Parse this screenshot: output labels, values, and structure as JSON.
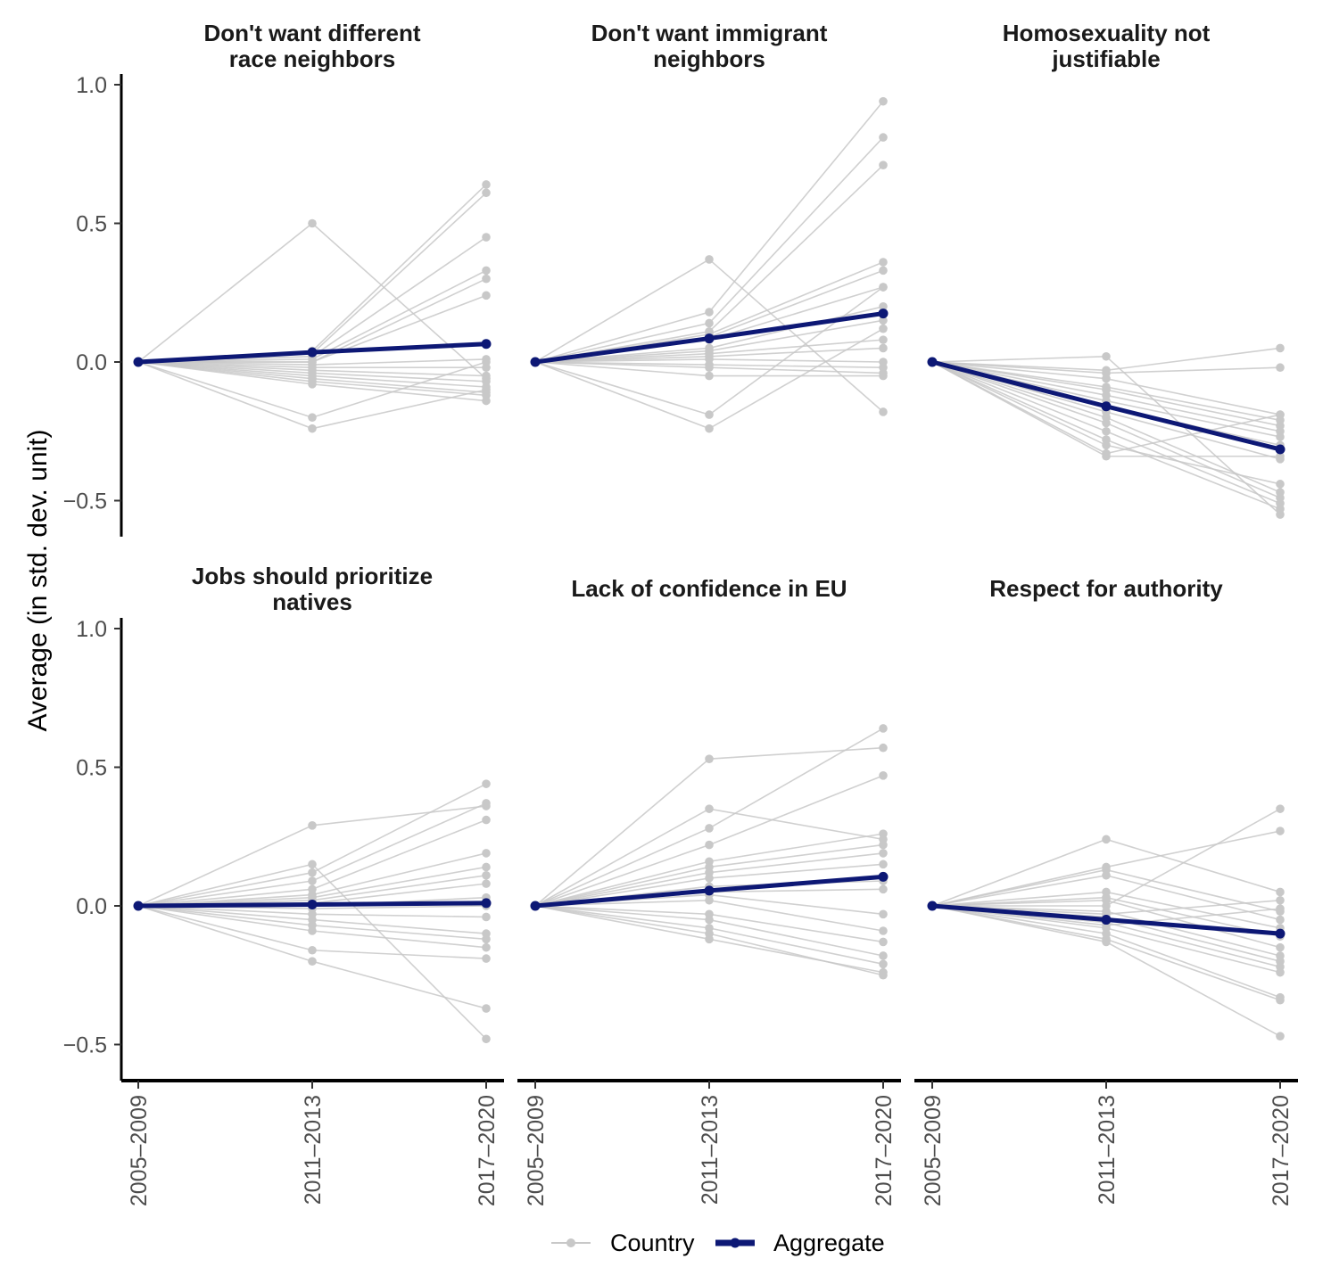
{
  "chart_data": {
    "type": "line",
    "ylabel": "Average (in std. dev. unit)",
    "periods": [
      "2005–2009",
      "2011–2013",
      "2017–2020"
    ],
    "yticks": [
      "1.0",
      "0.5",
      "0.0",
      "−0.5"
    ],
    "ylim": [
      -0.63,
      1.0
    ],
    "colors": {
      "country": "#c8c8c8",
      "aggregate": "#0d1875"
    },
    "legend": {
      "position": "bottom",
      "country_label": "Country",
      "aggregate_label": "Aggregate"
    },
    "panels": [
      {
        "title_lines": [
          "Don't want different",
          "race neighbors"
        ],
        "aggregate": [
          0,
          0.035,
          0.065
        ],
        "countries": [
          [
            0,
            0.5,
            -0.06
          ],
          [
            0,
            0.04,
            0.64
          ],
          [
            0,
            0.03,
            0.61
          ],
          [
            0,
            0.02,
            0.45
          ],
          [
            0,
            0.01,
            0.33
          ],
          [
            0,
            0.0,
            0.3
          ],
          [
            0,
            0.0,
            0.24
          ],
          [
            0,
            -0.01,
            0.01
          ],
          [
            0,
            -0.02,
            -0.02
          ],
          [
            0,
            -0.03,
            -0.05
          ],
          [
            0,
            -0.04,
            -0.07
          ],
          [
            0,
            -0.05,
            -0.09
          ],
          [
            0,
            -0.06,
            -0.11
          ],
          [
            0,
            -0.07,
            -0.12
          ],
          [
            0,
            -0.08,
            -0.14
          ],
          [
            0,
            -0.2,
            0.0
          ],
          [
            0,
            -0.24,
            -0.1
          ]
        ]
      },
      {
        "title_lines": [
          "Don't want immigrant",
          "neighbors"
        ],
        "aggregate": [
          0,
          0.085,
          0.175
        ],
        "countries": [
          [
            0,
            0.37,
            -0.18
          ],
          [
            0,
            0.18,
            0.94
          ],
          [
            0,
            0.14,
            0.81
          ],
          [
            0,
            0.11,
            0.71
          ],
          [
            0,
            0.1,
            0.36
          ],
          [
            0,
            0.09,
            0.33
          ],
          [
            0,
            0.08,
            0.27
          ],
          [
            0,
            0.05,
            0.2
          ],
          [
            0,
            0.04,
            0.15
          ],
          [
            0,
            0.03,
            0.08
          ],
          [
            0,
            0.02,
            0.05
          ],
          [
            0,
            0.01,
            0.0
          ],
          [
            0,
            -0.01,
            -0.02
          ],
          [
            0,
            -0.02,
            -0.04
          ],
          [
            0,
            -0.05,
            -0.05
          ],
          [
            0,
            -0.19,
            0.27
          ],
          [
            0,
            -0.24,
            0.12
          ]
        ]
      },
      {
        "title_lines": [
          "Homosexuality not",
          "justifiable"
        ],
        "aggregate": [
          0,
          -0.16,
          -0.315
        ],
        "countries": [
          [
            0,
            0.02,
            -0.55
          ],
          [
            0,
            -0.03,
            0.05
          ],
          [
            0,
            -0.04,
            -0.02
          ],
          [
            0,
            -0.06,
            -0.19
          ],
          [
            0,
            -0.09,
            -0.21
          ],
          [
            0,
            -0.1,
            -0.23
          ],
          [
            0,
            -0.12,
            -0.25
          ],
          [
            0,
            -0.14,
            -0.27
          ],
          [
            0,
            -0.16,
            -0.3
          ],
          [
            0,
            -0.18,
            -0.35
          ],
          [
            0,
            -0.2,
            -0.47
          ],
          [
            0,
            -0.22,
            -0.49
          ],
          [
            0,
            -0.25,
            -0.51
          ],
          [
            0,
            -0.28,
            -0.53
          ],
          [
            0,
            -0.33,
            -0.19
          ],
          [
            0,
            -0.34,
            -0.34
          ],
          [
            0,
            -0.3,
            -0.44
          ]
        ]
      },
      {
        "title_lines": [
          "Jobs should prioritize",
          "natives"
        ],
        "aggregate": [
          0,
          0.005,
          0.01
        ],
        "countries": [
          [
            0,
            0.29,
            0.36
          ],
          [
            0,
            0.15,
            -0.48
          ],
          [
            0,
            0.12,
            0.44
          ],
          [
            0,
            0.09,
            0.37
          ],
          [
            0,
            0.06,
            0.31
          ],
          [
            0,
            0.04,
            0.19
          ],
          [
            0,
            0.03,
            0.14
          ],
          [
            0,
            0.02,
            0.11
          ],
          [
            0,
            0.01,
            0.08
          ],
          [
            0,
            0.0,
            0.03
          ],
          [
            0,
            -0.01,
            0.0
          ],
          [
            0,
            -0.03,
            -0.04
          ],
          [
            0,
            -0.05,
            -0.1
          ],
          [
            0,
            -0.07,
            -0.12
          ],
          [
            0,
            -0.09,
            -0.15
          ],
          [
            0,
            -0.16,
            -0.19
          ],
          [
            0,
            -0.2,
            -0.37
          ]
        ]
      },
      {
        "title_lines": [
          "Lack of confidence in EU"
        ],
        "aggregate": [
          0,
          0.055,
          0.105
        ],
        "countries": [
          [
            0,
            0.53,
            0.57
          ],
          [
            0,
            0.35,
            0.24
          ],
          [
            0,
            0.28,
            0.64
          ],
          [
            0,
            0.22,
            0.47
          ],
          [
            0,
            0.16,
            0.26
          ],
          [
            0,
            0.14,
            0.22
          ],
          [
            0,
            0.12,
            0.19
          ],
          [
            0,
            0.1,
            0.15
          ],
          [
            0,
            0.07,
            0.09
          ],
          [
            0,
            0.05,
            0.06
          ],
          [
            0,
            0.04,
            -0.03
          ],
          [
            0,
            0.02,
            -0.09
          ],
          [
            0,
            -0.03,
            -0.13
          ],
          [
            0,
            -0.05,
            -0.18
          ],
          [
            0,
            -0.08,
            -0.21
          ],
          [
            0,
            -0.12,
            -0.24
          ],
          [
            0,
            -0.1,
            -0.25
          ]
        ]
      },
      {
        "title_lines": [
          "Respect for authority"
        ],
        "aggregate": [
          0,
          -0.05,
          -0.1
        ],
        "countries": [
          [
            0,
            0.24,
            0.05
          ],
          [
            0,
            0.14,
            0.27
          ],
          [
            0,
            0.13,
            -0.02
          ],
          [
            0,
            0.11,
            -0.05
          ],
          [
            0,
            0.05,
            -0.08
          ],
          [
            0,
            0.03,
            -0.11
          ],
          [
            0,
            0.02,
            -0.15
          ],
          [
            0,
            0.0,
            0.35
          ],
          [
            0,
            -0.02,
            -0.18
          ],
          [
            0,
            -0.04,
            -0.2
          ],
          [
            0,
            -0.06,
            -0.22
          ],
          [
            0,
            -0.08,
            -0.24
          ],
          [
            0,
            -0.1,
            -0.33
          ],
          [
            0,
            -0.12,
            -0.34
          ],
          [
            0,
            -0.13,
            -0.47
          ],
          [
            0,
            -0.03,
            0.02
          ],
          [
            0,
            -0.07,
            -0.01
          ]
        ]
      }
    ]
  }
}
